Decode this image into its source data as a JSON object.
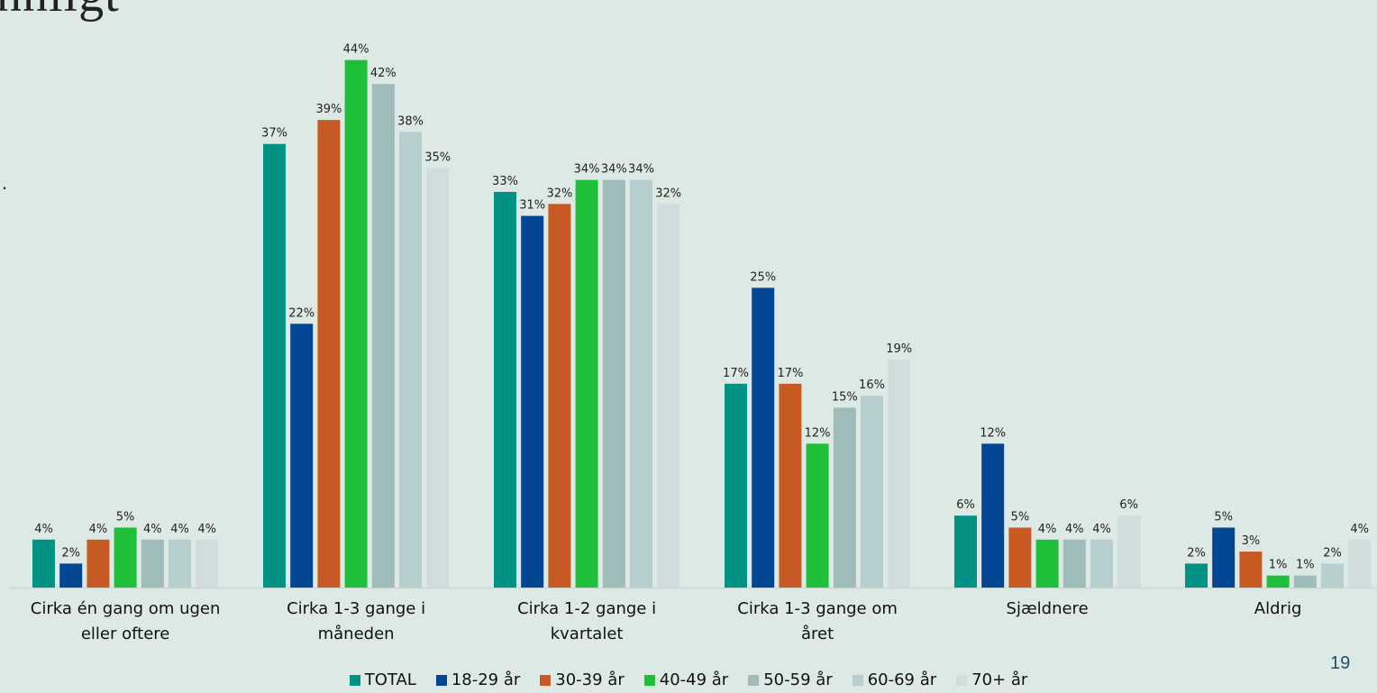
{
  "slide": {
    "title_fragment": "nnligt",
    "side_text": ".",
    "page_number": "19"
  },
  "chart_data": {
    "type": "bar",
    "title": "",
    "xlabel": "",
    "ylabel": "",
    "ylim": [
      0,
      46
    ],
    "grid": false,
    "legend_position": "bottom",
    "categories": [
      "Cirka én gang om ugen eller oftere",
      "Cirka 1-3 gange i måneden",
      "Cirka 1-2 gange i kvartalet",
      "Cirka 1-3 gange om året",
      "Sjældnere",
      "Aldrig"
    ],
    "series": [
      {
        "name": "TOTAL",
        "color": "#009384",
        "values": [
          4,
          37,
          33,
          17,
          6,
          2
        ]
      },
      {
        "name": "18-29 år",
        "color": "#034694",
        "values": [
          2,
          22,
          31,
          25,
          12,
          5
        ]
      },
      {
        "name": "30-39 år",
        "color": "#c85a24",
        "values": [
          4,
          39,
          32,
          17,
          5,
          3
        ]
      },
      {
        "name": "40-49 år",
        "color": "#1ec03a",
        "values": [
          5,
          44,
          34,
          12,
          4,
          1
        ]
      },
      {
        "name": "50-59 år",
        "color": "#9fbcbb",
        "values": [
          4,
          42,
          34,
          15,
          4,
          1
        ]
      },
      {
        "name": "60-69 år",
        "color": "#b8cfd0",
        "values": [
          4,
          38,
          34,
          16,
          4,
          2
        ]
      },
      {
        "name": "70+ år",
        "color": "#cfdedd",
        "values": [
          4,
          35,
          32,
          19,
          6,
          4
        ]
      }
    ],
    "data_labels": [
      [
        "4%",
        "37%",
        "33%",
        "17%",
        "6%",
        "2%"
      ],
      [
        "2%",
        "22%",
        "31%",
        "25%",
        "12%",
        "5%"
      ],
      [
        "4%",
        "39%",
        "32%",
        "17%",
        "5%",
        "3%"
      ],
      [
        "5%",
        "44%",
        "34%",
        "12%",
        "4%",
        "1%"
      ],
      [
        "4%",
        "42%",
        "34%",
        "15%",
        "4%",
        "1%"
      ],
      [
        "4%",
        "38%",
        "34%",
        "16%",
        "4%",
        "2%"
      ],
      [
        "4%",
        "35%",
        "32%",
        "19%",
        "6%",
        "4%"
      ]
    ]
  }
}
